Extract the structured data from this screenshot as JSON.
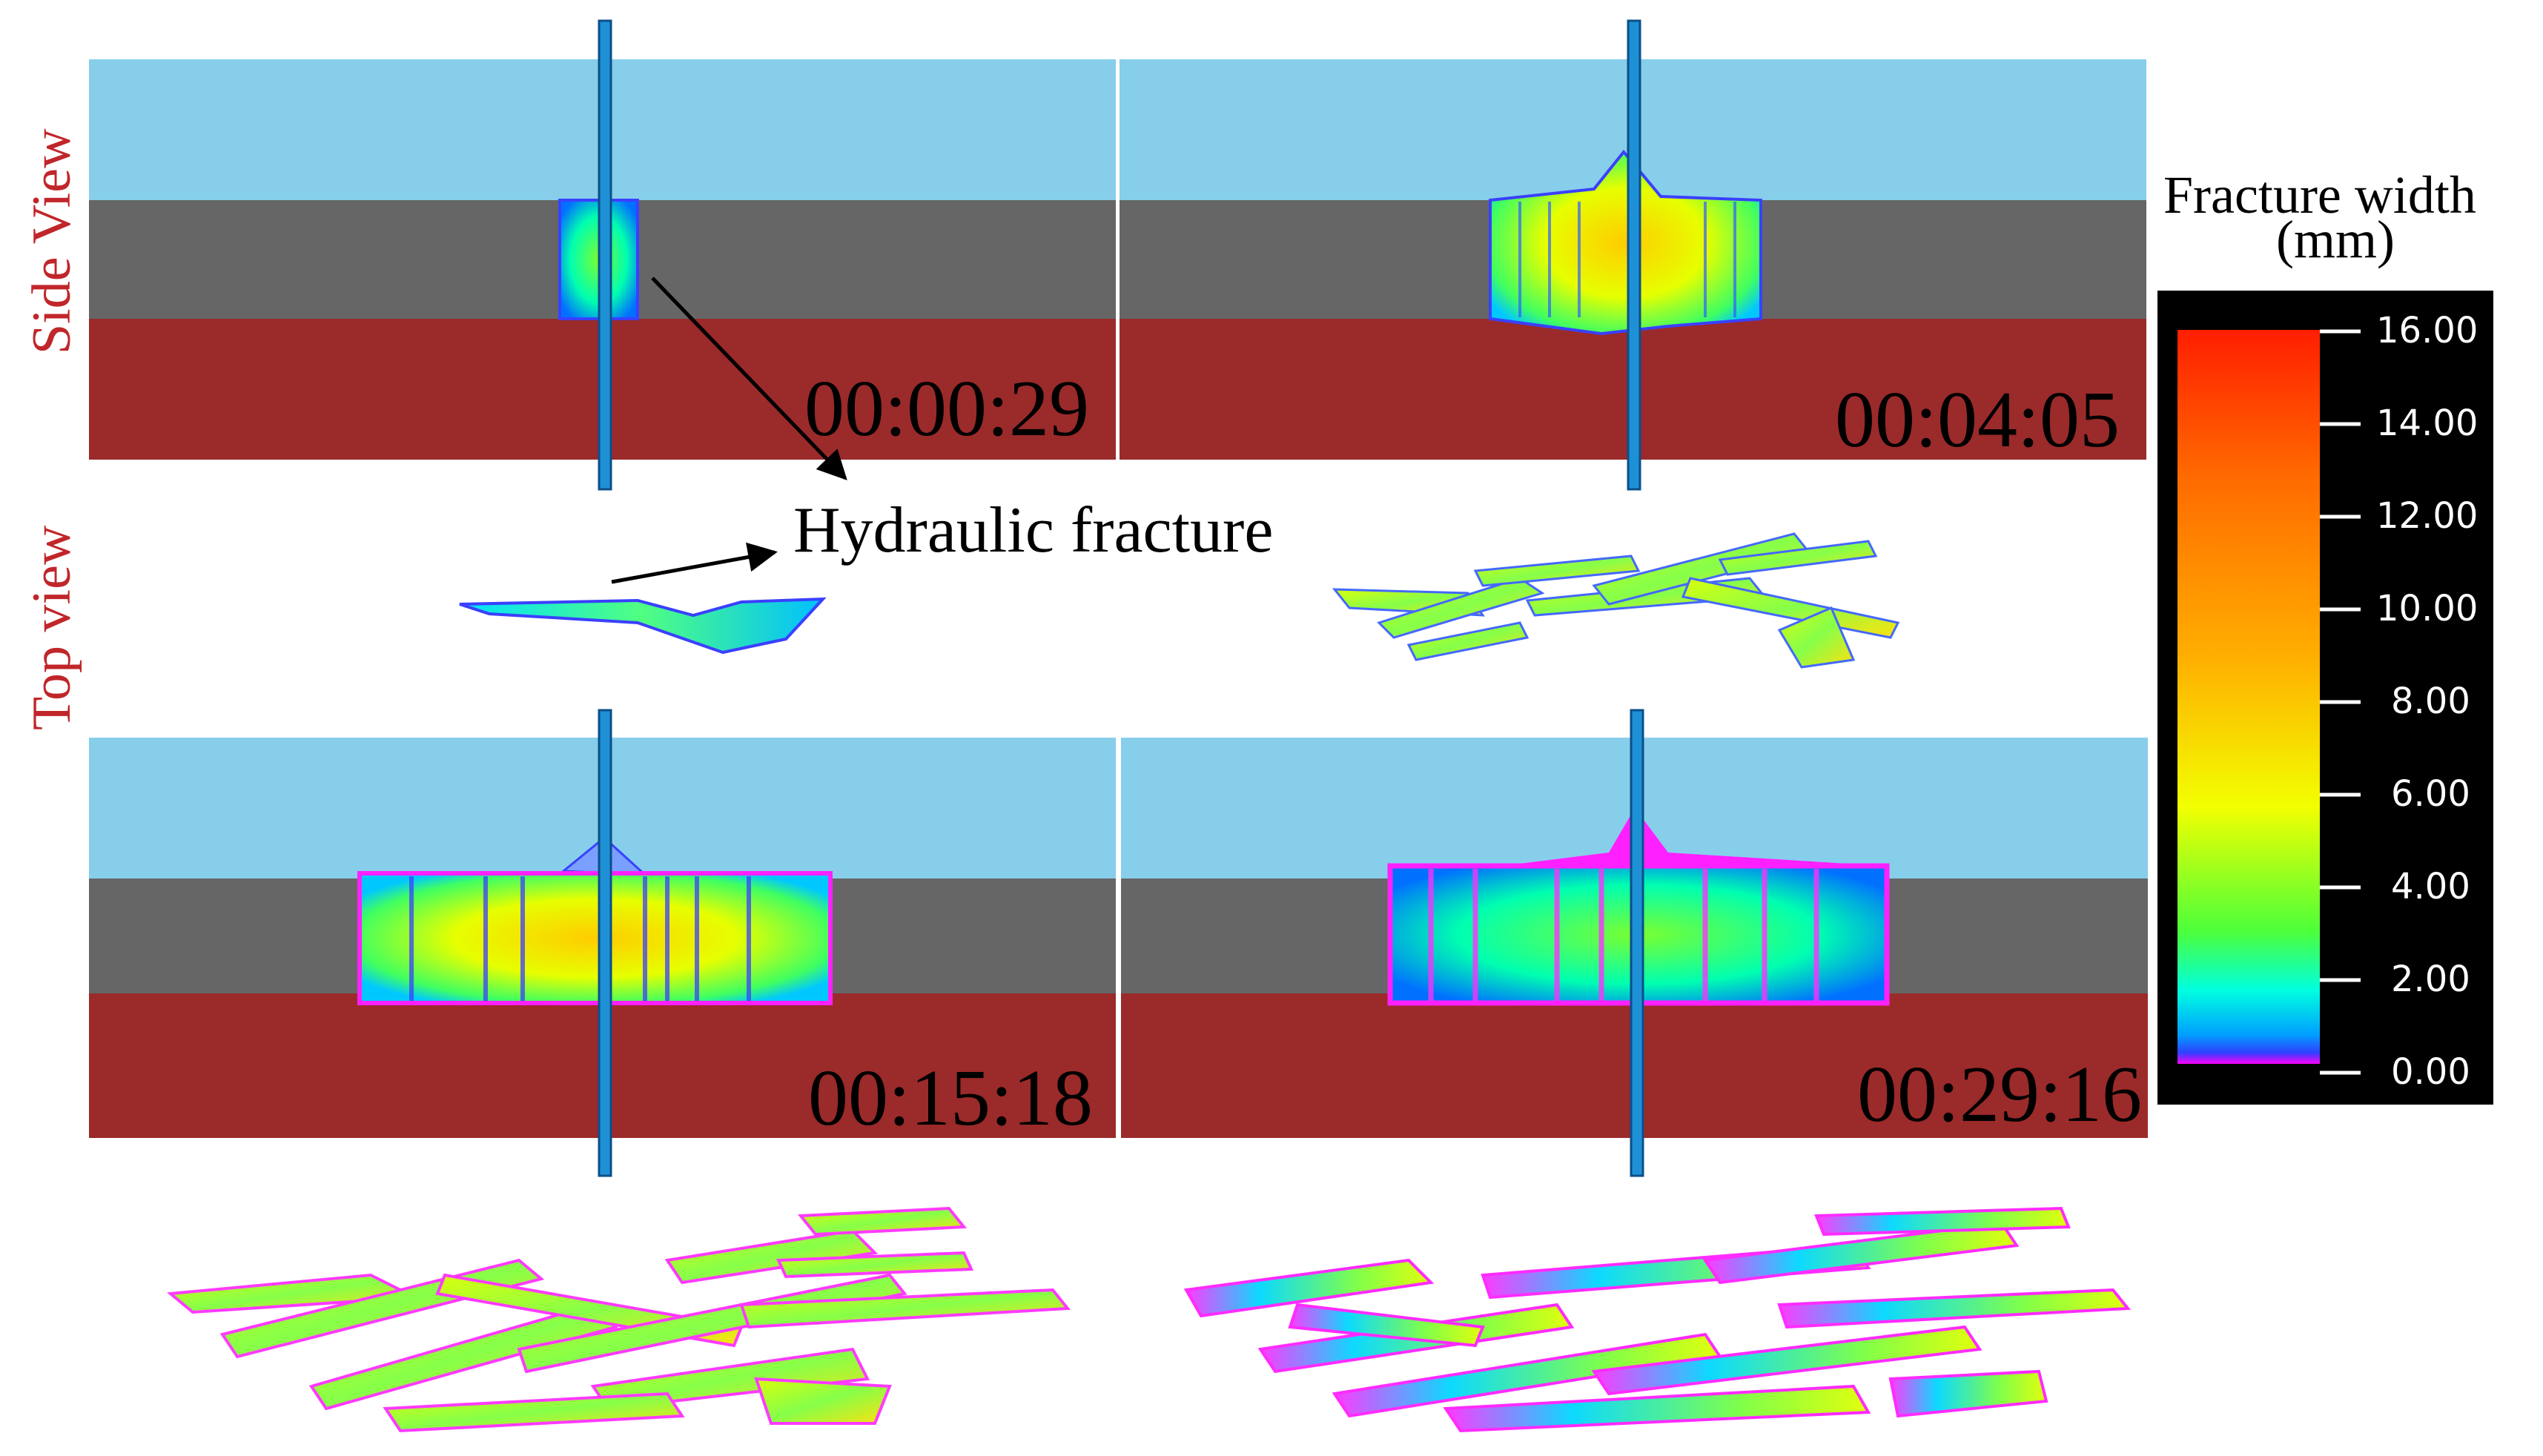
{
  "labels": {
    "side_view": "Side View",
    "top_view": "Top view",
    "hydraulic_fracture": "Hydraulic fracture"
  },
  "panels": [
    {
      "time": "00:00:29",
      "fracture_spread": 0.07
    },
    {
      "time": "00:04:05",
      "fracture_spread": 0.27
    },
    {
      "time": "00:15:18",
      "fracture_spread": 0.46
    },
    {
      "time": "00:29:16",
      "fracture_spread": 0.5
    }
  ],
  "colorbar": {
    "title_line1": "Fracture width",
    "title_line2": "(mm)",
    "ticks": [
      "16.00",
      "14.00",
      "12.00",
      "10.00",
      "8.00",
      "6.00",
      "4.00",
      "2.00",
      "0.00"
    ],
    "min": 0,
    "max": 16
  },
  "colors": {
    "top_layer": "#87ceeb",
    "middle_layer": "#666666",
    "bottom_layer": "#9b2a2a",
    "wellbore": "#1e90d6",
    "label_red": "#c0262a"
  }
}
